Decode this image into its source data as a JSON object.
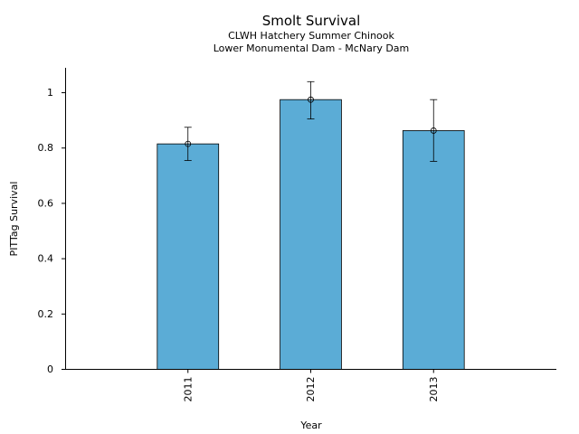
{
  "chart_data": {
    "type": "bar",
    "title": "Smolt Survival",
    "subtitle_lines": [
      "CLWH Hatchery Summer Chinook",
      "Lower Monumental Dam - McNary Dam"
    ],
    "xlabel": "Year",
    "ylabel": "PITTag Survival",
    "categories": [
      "2011",
      "2012",
      "2013"
    ],
    "values": [
      0.815,
      0.975,
      0.863
    ],
    "error_low": [
      0.755,
      0.905,
      0.752
    ],
    "error_high": [
      0.875,
      1.04,
      0.975
    ],
    "yticks": [
      0,
      0.2,
      0.4,
      0.6,
      0.8,
      1
    ],
    "ytick_labels": [
      "0",
      "0.2",
      "0.4",
      "0.6",
      "0.8",
      "1"
    ],
    "ylim": [
      0,
      1.09
    ],
    "bar_color": "#5bacd6",
    "edge_color": "#000000",
    "grid": false,
    "legend": "none"
  }
}
